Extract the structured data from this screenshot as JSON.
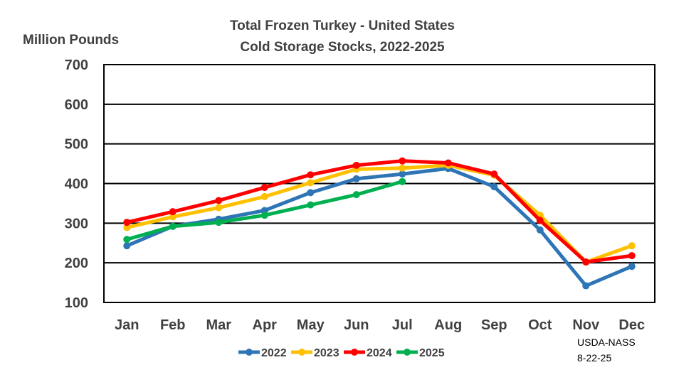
{
  "chart_data": {
    "type": "line",
    "title": "Total Frozen Turkey - United States",
    "subtitle": "Cold Storage Stocks, 2022-2025",
    "ylabel": "Million Pounds",
    "xlabel": "",
    "categories": [
      "Jan",
      "Feb",
      "Mar",
      "Apr",
      "May",
      "Jun",
      "Jul",
      "Aug",
      "Sep",
      "Oct",
      "Nov",
      "Dec"
    ],
    "ylim": [
      100,
      700
    ],
    "yticks": [
      100,
      200,
      300,
      400,
      500,
      600,
      700
    ],
    "grid": true,
    "legend_position": "bottom",
    "series": [
      {
        "name": "2022",
        "color": "#2E75B6",
        "values": [
          243,
          292,
          310,
          332,
          377,
          412,
          424,
          438,
          392,
          283,
          142,
          191
        ]
      },
      {
        "name": "2023",
        "color": "#FFC000",
        "values": [
          289,
          316,
          339,
          367,
          402,
          436,
          439,
          446,
          421,
          320,
          202,
          243
        ]
      },
      {
        "name": "2024",
        "color": "#FF0000",
        "values": [
          302,
          329,
          357,
          390,
          422,
          446,
          457,
          452,
          424,
          307,
          202,
          218
        ]
      },
      {
        "name": "2025",
        "color": "#00B050",
        "values": [
          259,
          292,
          302,
          320,
          346,
          372,
          405,
          null,
          null,
          null,
          null,
          null
        ]
      }
    ],
    "source_note": [
      "USDA-NASS",
      "8-22-25"
    ]
  }
}
